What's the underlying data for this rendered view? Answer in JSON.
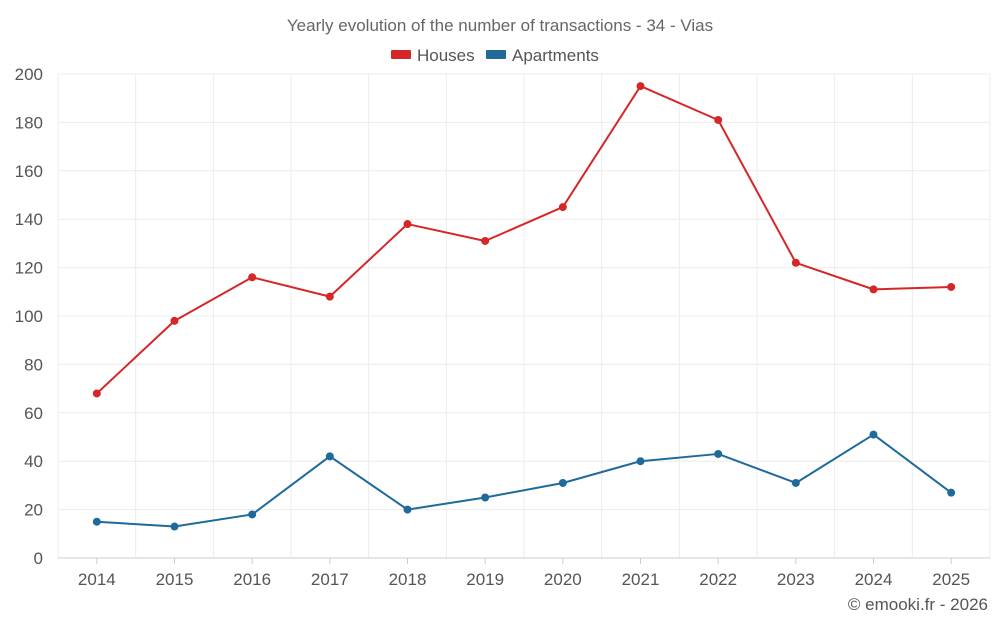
{
  "chart_data": {
    "type": "line",
    "title": "Yearly evolution of the number of transactions - 34 - Vias",
    "xlabel": "",
    "ylabel": "",
    "categories": [
      "2014",
      "2015",
      "2016",
      "2017",
      "2018",
      "2019",
      "2020",
      "2021",
      "2022",
      "2023",
      "2024",
      "2025"
    ],
    "ylim": [
      0,
      200
    ],
    "yticks": [
      0,
      20,
      40,
      60,
      80,
      100,
      120,
      140,
      160,
      180,
      200
    ],
    "grid": true,
    "legend_position": "top-center",
    "series": [
      {
        "name": "Houses",
        "color": "#d62728",
        "values": [
          68,
          98,
          116,
          108,
          138,
          131,
          145,
          195,
          181,
          122,
          111,
          112
        ]
      },
      {
        "name": "Apartments",
        "color": "#1f6a9b",
        "values": [
          15,
          13,
          18,
          42,
          20,
          25,
          31,
          40,
          43,
          31,
          51,
          27
        ]
      }
    ],
    "credit": "© emooki.fr - 2026"
  }
}
